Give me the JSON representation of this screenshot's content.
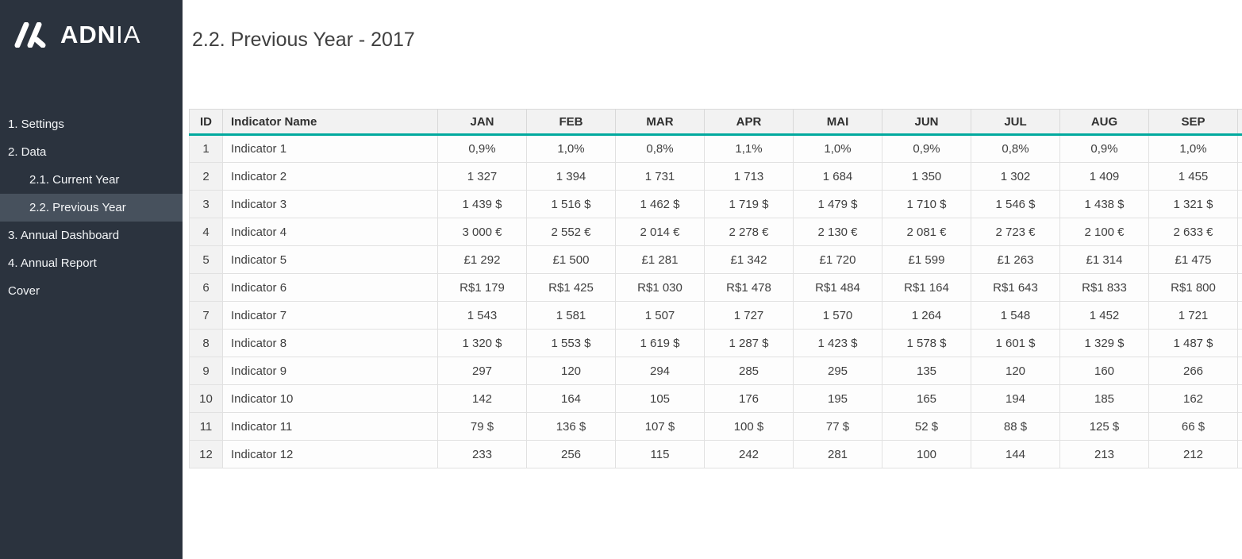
{
  "colors": {
    "sidebar_bg": "#2b333e",
    "sidebar_selected_bg": "#47515d",
    "accent_teal": "#00a99e",
    "header_bg": "#f2f2f2",
    "text_dark": "#3f3f3f"
  },
  "sidebar": {
    "logo": {
      "brand_bold": "ADN",
      "brand_light": "IA"
    },
    "items": [
      {
        "label": "1. Settings",
        "level": 0,
        "selected": false
      },
      {
        "label": "2. Data",
        "level": 0,
        "selected": false
      },
      {
        "label": "2.1. Current Year",
        "level": 1,
        "selected": false
      },
      {
        "label": "2.2. Previous Year",
        "level": 1,
        "selected": true
      },
      {
        "label": "3. Annual Dashboard",
        "level": 0,
        "selected": false
      },
      {
        "label": "4. Annual Report",
        "level": 0,
        "selected": false
      },
      {
        "label": "Cover",
        "level": 0,
        "selected": false
      }
    ]
  },
  "main": {
    "title": "2.2. Previous Year - 2017",
    "table": {
      "columns": [
        "ID",
        "Indicator Name",
        "JAN",
        "FEB",
        "MAR",
        "APR",
        "MAI",
        "JUN",
        "JUL",
        "AUG",
        "SEP"
      ],
      "rows": [
        {
          "id": "1",
          "name": "Indicator 1",
          "values": [
            "0,9%",
            "1,0%",
            "0,8%",
            "1,1%",
            "1,0%",
            "0,9%",
            "0,8%",
            "0,9%",
            "1,0%"
          ]
        },
        {
          "id": "2",
          "name": "Indicator 2",
          "values": [
            "1 327",
            "1 394",
            "1 731",
            "1 713",
            "1 684",
            "1 350",
            "1 302",
            "1 409",
            "1 455"
          ]
        },
        {
          "id": "3",
          "name": "Indicator 3",
          "values": [
            "1 439 $",
            "1 516 $",
            "1 462 $",
            "1 719 $",
            "1 479 $",
            "1 710 $",
            "1 546 $",
            "1 438 $",
            "1 321 $"
          ]
        },
        {
          "id": "4",
          "name": "Indicator 4",
          "values": [
            "3 000 €",
            "2 552 €",
            "2 014 €",
            "2 278 €",
            "2 130 €",
            "2 081 €",
            "2 723 €",
            "2 100 €",
            "2 633 €"
          ]
        },
        {
          "id": "5",
          "name": "Indicator 5",
          "values": [
            "£1 292",
            "£1 500",
            "£1 281",
            "£1 342",
            "£1 720",
            "£1 599",
            "£1 263",
            "£1 314",
            "£1 475"
          ]
        },
        {
          "id": "6",
          "name": "Indicator 6",
          "values": [
            "R$1 179",
            "R$1 425",
            "R$1 030",
            "R$1 478",
            "R$1 484",
            "R$1 164",
            "R$1 643",
            "R$1 833",
            "R$1 800"
          ]
        },
        {
          "id": "7",
          "name": "Indicator 7",
          "values": [
            "1 543",
            "1 581",
            "1 507",
            "1 727",
            "1 570",
            "1 264",
            "1 548",
            "1 452",
            "1 721"
          ]
        },
        {
          "id": "8",
          "name": "Indicator 8",
          "values": [
            "1 320 $",
            "1 553 $",
            "1 619 $",
            "1 287 $",
            "1 423 $",
            "1 578 $",
            "1 601 $",
            "1 329 $",
            "1 487 $"
          ]
        },
        {
          "id": "9",
          "name": "Indicator 9",
          "values": [
            "297",
            "120",
            "294",
            "285",
            "295",
            "135",
            "120",
            "160",
            "266"
          ]
        },
        {
          "id": "10",
          "name": "Indicator 10",
          "values": [
            "142",
            "164",
            "105",
            "176",
            "195",
            "165",
            "194",
            "185",
            "162"
          ]
        },
        {
          "id": "11",
          "name": "Indicator 11",
          "values": [
            "79 $",
            "136 $",
            "107 $",
            "100 $",
            "77 $",
            "52 $",
            "88 $",
            "125 $",
            "66 $"
          ]
        },
        {
          "id": "12",
          "name": "Indicator 12",
          "values": [
            "233",
            "256",
            "115",
            "242",
            "281",
            "100",
            "144",
            "213",
            "212"
          ]
        }
      ]
    }
  }
}
